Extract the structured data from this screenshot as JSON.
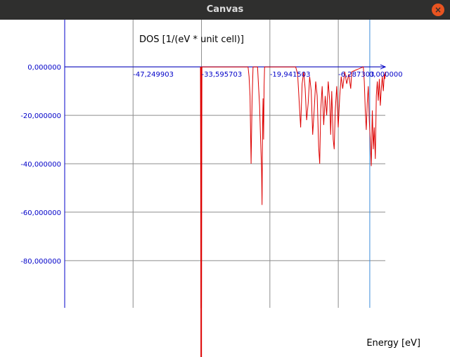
{
  "window": {
    "title": "Canvas"
  },
  "chart_data": {
    "type": "line",
    "ylabel": "DOS [1/(eV * unit cell)]",
    "xlabel": "Energy [eV]",
    "xlim": [
      -60.9,
      3.1
    ],
    "ylim": [
      -99.5,
      19.5
    ],
    "x_ticks": [
      {
        "value": -47.249903,
        "label": "-47,249903"
      },
      {
        "value": -33.595703,
        "label": "-33,595703"
      },
      {
        "value": -19.941503,
        "label": "-19,941503"
      },
      {
        "value": -6.2873,
        "label": "-6,287303"
      },
      {
        "value": 0.0,
        "label": "0,000000"
      }
    ],
    "y_ticks": [
      {
        "value": 0,
        "label": "0,000000"
      },
      {
        "value": -20,
        "label": "-20,000000"
      },
      {
        "value": -40,
        "label": "-40,000000"
      },
      {
        "value": -60,
        "label": "-60,000000"
      },
      {
        "value": -80,
        "label": "-80,000000"
      }
    ],
    "fermi_level": 0.0,
    "series": [
      {
        "color": "#dd0000",
        "points": [
          [
            -33.8,
            0
          ],
          [
            -33.7,
            -99.5
          ],
          [
            -33.6,
            -99.5
          ],
          [
            -33.5,
            0
          ],
          [
            -24.3,
            0
          ],
          [
            -24.1,
            -4
          ],
          [
            -23.9,
            -12
          ],
          [
            -23.7,
            -40
          ],
          [
            -23.5,
            -14
          ],
          [
            -23.3,
            0
          ],
          [
            -22.4,
            0
          ],
          [
            -22.2,
            -8
          ],
          [
            -22.0,
            -16
          ],
          [
            -21.8,
            -30
          ],
          [
            -21.6,
            -42
          ],
          [
            -21.5,
            -57
          ],
          [
            -21.4,
            -25
          ],
          [
            -21.3,
            -13
          ],
          [
            -21.2,
            -30
          ],
          [
            -21.1,
            -8
          ],
          [
            -21.0,
            0
          ],
          [
            -14.8,
            0
          ],
          [
            -14.4,
            -3
          ],
          [
            -14.0,
            -18
          ],
          [
            -13.8,
            -25
          ],
          [
            -13.5,
            -7
          ],
          [
            -13.2,
            -2
          ],
          [
            -12.9,
            -9
          ],
          [
            -12.6,
            -22
          ],
          [
            -12.3,
            -15
          ],
          [
            -12.0,
            -4
          ],
          [
            -11.7,
            -10
          ],
          [
            -11.4,
            -28
          ],
          [
            -11.1,
            -18
          ],
          [
            -10.8,
            -6
          ],
          [
            -10.5,
            -12
          ],
          [
            -10.2,
            -33
          ],
          [
            -10.0,
            -40
          ],
          [
            -9.8,
            -18
          ],
          [
            -9.5,
            -8
          ],
          [
            -9.2,
            -24
          ],
          [
            -8.9,
            -12
          ],
          [
            -8.6,
            -20
          ],
          [
            -8.3,
            -6
          ],
          [
            -8.0,
            -14
          ],
          [
            -7.8,
            -28
          ],
          [
            -7.6,
            -10
          ],
          [
            -7.3,
            -30
          ],
          [
            -7.1,
            -34
          ],
          [
            -6.9,
            -18
          ],
          [
            -6.6,
            -8
          ],
          [
            -6.3,
            -25
          ],
          [
            -6.0,
            -12
          ],
          [
            -5.7,
            -4
          ],
          [
            -5.4,
            -9
          ],
          [
            -5.0,
            -2
          ],
          [
            -4.6,
            -7
          ],
          [
            -4.2,
            -3
          ],
          [
            -3.8,
            -9
          ],
          [
            -3.6,
            -2
          ],
          [
            -1.3,
            0
          ],
          [
            -1.1,
            -6
          ],
          [
            -0.9,
            -18
          ],
          [
            -0.7,
            -26
          ],
          [
            -0.5,
            -15
          ],
          [
            -0.3,
            -8
          ],
          [
            -0.1,
            -22
          ],
          [
            0.1,
            -30
          ],
          [
            0.3,
            -41
          ],
          [
            0.5,
            -18
          ],
          [
            0.7,
            -34
          ],
          [
            0.9,
            -25
          ],
          [
            1.1,
            -38
          ],
          [
            1.3,
            -12
          ],
          [
            1.5,
            -6
          ],
          [
            1.7,
            -14
          ],
          [
            1.9,
            -5
          ],
          [
            2.1,
            -16
          ],
          [
            2.3,
            -9
          ],
          [
            2.5,
            -4
          ],
          [
            2.7,
            -10
          ],
          [
            2.9,
            -3
          ],
          [
            3.0,
            -5
          ],
          [
            3.1,
            -2
          ]
        ]
      }
    ]
  }
}
